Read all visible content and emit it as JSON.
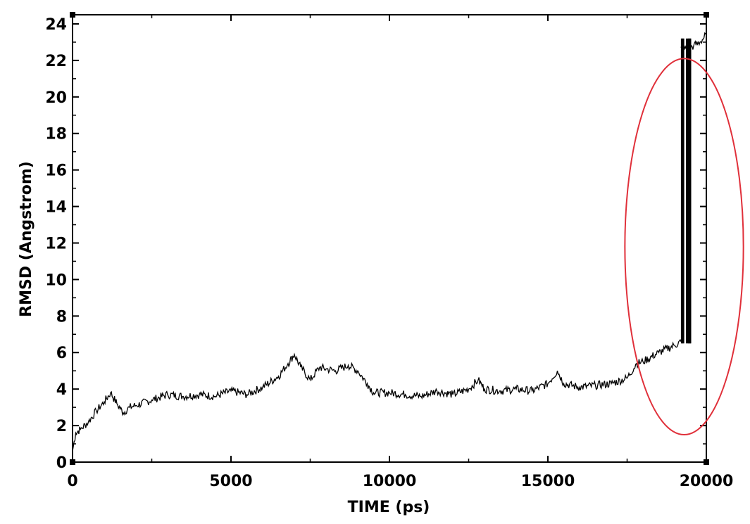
{
  "chart_data": {
    "type": "line",
    "title": "",
    "xlabel": "TIME (ps)",
    "ylabel": "RMSD (Angstrom)",
    "xlim": [
      0,
      20000
    ],
    "ylim": [
      0,
      24.5
    ],
    "x_ticks": [
      0,
      5000,
      10000,
      15000,
      20000
    ],
    "x_tick_labels": [
      "0",
      "5000",
      "10000",
      "15000",
      "20000"
    ],
    "x_minor_step": 2500,
    "y_ticks": [
      0,
      2,
      4,
      6,
      8,
      10,
      12,
      14,
      16,
      18,
      20,
      22,
      24
    ],
    "y_tick_labels": [
      "0",
      "2",
      "4",
      "6",
      "8",
      "10",
      "12",
      "14",
      "16",
      "18",
      "20",
      "22",
      "24"
    ],
    "grid": false,
    "legend": "none",
    "line_color": "#000000",
    "annotation": {
      "shape": "ellipse",
      "color": "#e0303a",
      "center_x": 19300,
      "center_y": 11.8,
      "radius_x": 1870,
      "radius_y": 10.3
    },
    "series": [
      {
        "x": [
          0,
          100,
          250,
          500,
          750,
          1000,
          1200,
          1400,
          1600,
          1800,
          2000,
          2500,
          3000,
          3500,
          4000,
          4500,
          5000,
          5500,
          6000,
          6500,
          6800,
          7000,
          7200,
          7500,
          7800,
          8000,
          8300,
          8700,
          9000,
          9300,
          9500,
          10000,
          10500,
          11000,
          11500,
          12000,
          12500,
          12800,
          13000,
          13500,
          14000,
          14500,
          15000,
          15300,
          15500,
          16000,
          16500,
          17000,
          17500,
          17800,
          18000,
          18500,
          19000,
          19200
        ],
        "values": [
          0.6,
          1.6,
          1.8,
          2.2,
          2.8,
          3.3,
          3.8,
          3.2,
          2.7,
          3.0,
          3.1,
          3.4,
          3.7,
          3.6,
          3.7,
          3.6,
          3.9,
          3.7,
          4.1,
          4.7,
          5.4,
          5.9,
          5.2,
          4.5,
          5.2,
          5.1,
          5.0,
          5.3,
          5.0,
          4.3,
          3.8,
          3.8,
          3.7,
          3.6,
          3.9,
          3.7,
          4.0,
          4.5,
          4.0,
          3.9,
          4.0,
          3.9,
          4.3,
          5.0,
          4.3,
          4.1,
          4.2,
          4.3,
          4.6,
          5.4,
          5.5,
          6.0,
          6.4,
          6.6
        ]
      },
      {
        "x": [
          19200,
          19400,
          19600,
          19800,
          20000
        ],
        "values": [
          22.7,
          22.6,
          22.8,
          23.0,
          23.4
        ]
      }
    ],
    "transition_spikes": {
      "x": [
        19220,
        19250,
        19280,
        19380,
        19420,
        19450,
        19480,
        19500
      ],
      "low": 6.5,
      "high": 23.2
    }
  }
}
